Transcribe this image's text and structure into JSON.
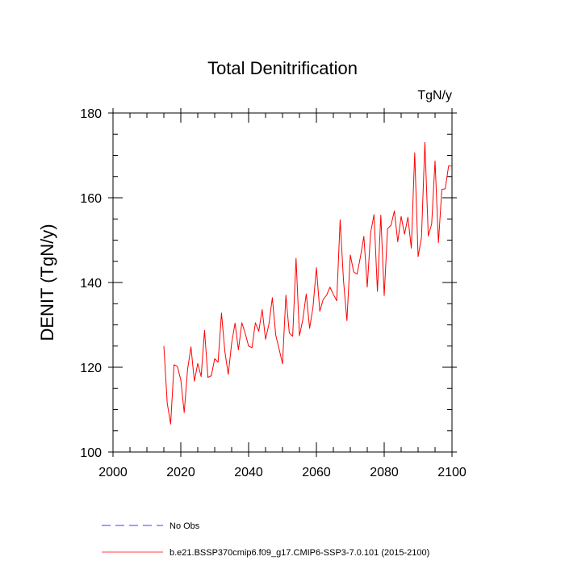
{
  "chart_data": {
    "type": "line",
    "title": "Total Denitrification",
    "units_label": "TgN/y",
    "xlabel": "",
    "ylabel": "DENIT  (TgN/y)",
    "xlim": [
      2000,
      2100
    ],
    "ylim": [
      100,
      180
    ],
    "x_ticks": [
      2000,
      2020,
      2040,
      2060,
      2080,
      2100
    ],
    "y_ticks": [
      100,
      120,
      140,
      160,
      180
    ],
    "x_tick_labels": [
      "2000",
      "2020",
      "2040",
      "2060",
      "2080",
      "2100"
    ],
    "y_tick_labels": [
      "100",
      "120",
      "140",
      "160",
      "180"
    ],
    "x_minor_step": 5,
    "y_minor_step": 5,
    "grid": false,
    "legend_position": "bottom-left",
    "series": [
      {
        "name": "b.e21.BSSP370cmip6.f09_g17.CMIP6-SSP3-7.0.101 (2015-2100)",
        "color": "#ff0000",
        "dash": "solid",
        "x": [
          2015,
          2016,
          2017,
          2018,
          2019,
          2020,
          2021,
          2022,
          2023,
          2024,
          2025,
          2026,
          2027,
          2028,
          2029,
          2030,
          2031,
          2032,
          2033,
          2034,
          2035,
          2036,
          2037,
          2038,
          2039,
          2040,
          2041,
          2042,
          2043,
          2044,
          2045,
          2046,
          2047,
          2048,
          2049,
          2050,
          2051,
          2052,
          2053,
          2054,
          2055,
          2056,
          2057,
          2058,
          2059,
          2060,
          2061,
          2062,
          2063,
          2064,
          2065,
          2066,
          2067,
          2068,
          2069,
          2070,
          2071,
          2072,
          2073,
          2074,
          2075,
          2076,
          2077,
          2078,
          2079,
          2080,
          2081,
          2082,
          2083,
          2084,
          2085,
          2086,
          2087,
          2088,
          2089,
          2090,
          2091,
          2092,
          2093,
          2094,
          2095,
          2096,
          2097,
          2098,
          2099,
          2100
        ],
        "values": [
          125.0,
          111.5,
          106.6,
          120.6,
          120.2,
          117.0,
          109.3,
          119.5,
          124.8,
          116.7,
          120.9,
          117.8,
          128.7,
          117.6,
          118.0,
          122.0,
          121.2,
          132.8,
          123.7,
          118.3,
          125.7,
          130.4,
          124.1,
          130.5,
          128.0,
          125.0,
          124.6,
          130.5,
          128.5,
          133.6,
          126.6,
          130.2,
          136.4,
          127.6,
          124.3,
          120.8,
          137.0,
          128.1,
          127.3,
          145.7,
          127.4,
          131.3,
          137.3,
          129.2,
          134.2,
          143.5,
          133.2,
          136.0,
          137.0,
          138.9,
          137.2,
          135.7,
          154.8,
          140.4,
          131.0,
          146.5,
          142.5,
          142.0,
          146.1,
          150.9,
          138.9,
          151.8,
          156.0,
          137.9,
          155.9,
          136.9,
          152.7,
          153.5,
          156.9,
          149.6,
          155.6,
          151.4,
          155.4,
          148.1,
          170.6,
          146.1,
          150.7,
          173.1,
          151.0,
          153.8,
          168.7,
          149.4,
          162.0,
          162.1,
          167.5,
          167.5
        ]
      },
      {
        "name": "No Obs",
        "color": "#0000ff",
        "dash": "dashed",
        "x": [],
        "values": []
      }
    ]
  }
}
